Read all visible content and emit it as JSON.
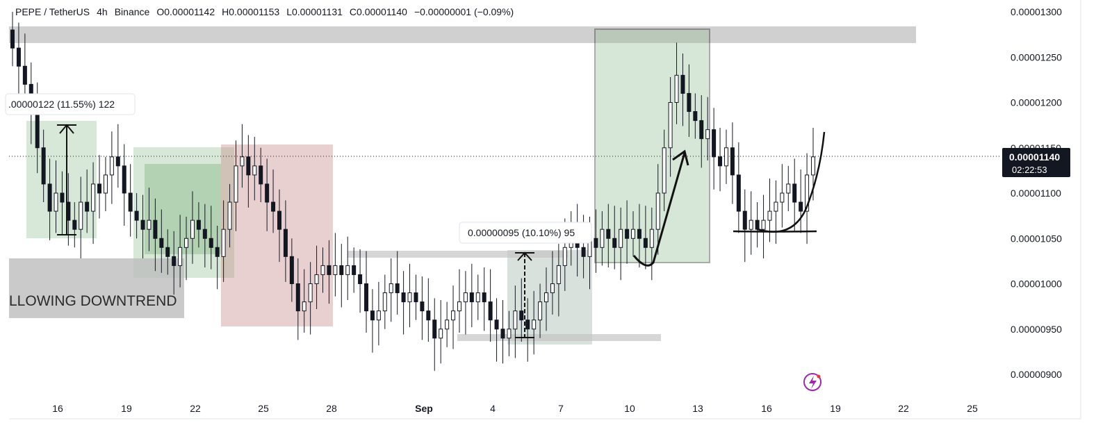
{
  "header": {
    "symbol": "PEPE / TetherUS",
    "interval": "4h",
    "exchange": "Binance",
    "open": "O0.00001142",
    "high": "H0.00001153",
    "low": "L0.00001131",
    "close": "C0.00001140",
    "change": "−0.00000001 (−0.09%)"
  },
  "price_axis": {
    "ticks": [
      "0.00001300",
      "0.00001250",
      "0.00001200",
      "0.00001150",
      "0.00001100",
      "0.00001050",
      "0.00001000",
      "0.00000950",
      "0.00000900"
    ],
    "current_price": "0.00001140",
    "countdown": "02:22:53"
  },
  "time_axis": {
    "ticks": [
      "16",
      "19",
      "22",
      "25",
      "28",
      "Sep",
      "4",
      "7",
      "10",
      "13",
      "16",
      "19",
      "22",
      "25"
    ]
  },
  "annotations": {
    "measure_1": ".00000122 (11.55%) 122",
    "measure_2": "0.00000095 (10.10%) 95",
    "downtrend_label": "LLOWING DOWNTREND"
  },
  "colors": {
    "up_candle": "#ffffff",
    "down_candle": "#131722",
    "green_zone": "#8fbc8f",
    "red_zone": "#c98a8a",
    "grey_zone": "#bdbdbd",
    "accent": "#9c27b0"
  },
  "chart_data": {
    "type": "candlestick",
    "title": "PEPE / TetherUS · 4h · Binance",
    "y_range": [
      8.8e-06,
      1.31e-05
    ],
    "closes": [
      1.26e-05,
      1.24e-05,
      1.22e-05,
      1.19e-05,
      1.15e-05,
      1.11e-05,
      1.08e-05,
      1.1e-05,
      1.09e-05,
      1.07e-05,
      1.06e-05,
      1.09e-05,
      1.08e-05,
      1.11e-05,
      1.1e-05,
      1.12e-05,
      1.14e-05,
      1.13e-05,
      1.1e-05,
      1.08e-05,
      1.07e-05,
      1.06e-05,
      1.07e-05,
      1.05e-05,
      1.04e-05,
      1.03e-05,
      1.02e-05,
      1.04e-05,
      1.05e-05,
      1.07e-05,
      1.06e-05,
      1.05e-05,
      1.04e-05,
      1.03e-05,
      1.06e-05,
      1.09e-05,
      1.13e-05,
      1.14e-05,
      1.12e-05,
      1.13e-05,
      1.11e-05,
      1.09e-05,
      1.08e-05,
      1.06e-05,
      1.03e-05,
      1e-05,
      9.7e-06,
      9.8e-06,
      1e-05,
      1.01e-05,
      1.02e-05,
      1.01e-05,
      1.02e-05,
      1.01e-05,
      1.02e-05,
      1.01e-05,
      1e-05,
      9.7e-06,
      9.6e-06,
      9.7e-06,
      9.9e-06,
      1e-05,
      9.9e-06,
      9.8e-06,
      9.9e-06,
      9.8e-06,
      9.7e-06,
      9.6e-06,
      9.4e-06,
      9.5e-06,
      9.6e-06,
      9.7e-06,
      9.8e-06,
      9.9e-06,
      9.8e-06,
      9.9e-06,
      9.8e-06,
      9.6e-06,
      9.5e-06,
      9.4e-06,
      9.5e-06,
      9.7e-06,
      9.6e-06,
      9.5e-06,
      9.6e-06,
      9.8e-06,
      9.9e-06,
      1e-05,
      1.02e-05,
      1.04e-05,
      1.06e-05,
      1.04e-05,
      1.03e-05,
      1.05e-05,
      1.04e-05,
      1.06e-05,
      1.05e-05,
      1.04e-05,
      1.06e-05,
      1.05e-05,
      1.06e-05,
      1.05e-05,
      1.04e-05,
      1.06e-05,
      1.1e-05,
      1.15e-05,
      1.2e-05,
      1.23e-05,
      1.21e-05,
      1.19e-05,
      1.18e-05,
      1.16e-05,
      1.17e-05,
      1.14e-05,
      1.13e-05,
      1.15e-05,
      1.12e-05,
      1.08e-05,
      1.06e-05,
      1.07e-05,
      1.06e-05,
      1.07e-05,
      1.08e-05,
      1.09e-05,
      1.1e-05,
      1.11e-05,
      1.09e-05,
      1.08e-05,
      1.12e-05,
      1.14e-05
    ]
  }
}
